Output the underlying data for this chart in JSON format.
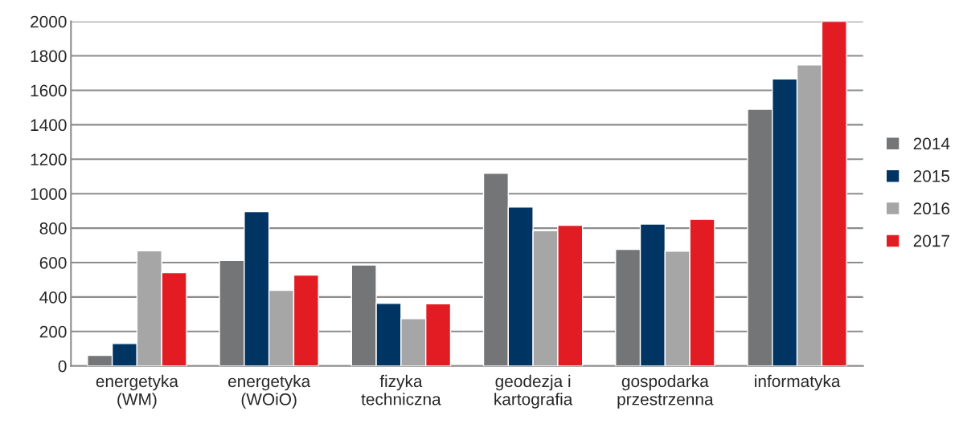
{
  "chart_data": {
    "type": "bar",
    "categories": [
      "energetyka\n(WM)",
      "energetyka\n(WOiO)",
      "fizyka\ntechniczna",
      "geodezja i\nkartografia",
      "gospodarka\nprzestrzenna",
      "informatyka"
    ],
    "series": [
      {
        "name": "2014",
        "color": "#747577",
        "values": [
          61,
          612,
          586,
          1118,
          677,
          1490
        ]
      },
      {
        "name": "2015",
        "color": "#003462",
        "values": [
          130,
          896,
          363,
          922,
          824,
          1666
        ]
      },
      {
        "name": "2016",
        "color": "#a6a6a6",
        "values": [
          668,
          439,
          275,
          785,
          666,
          1748
        ]
      },
      {
        "name": "2017",
        "color": "#e31c24",
        "values": [
          541,
          527,
          361,
          816,
          851,
          2000
        ]
      }
    ],
    "ylim": [
      0,
      2000
    ],
    "yticks": [
      0,
      200,
      400,
      600,
      800,
      1000,
      1200,
      1400,
      1600,
      1800,
      2000
    ],
    "grid": "y",
    "legend": "right"
  }
}
